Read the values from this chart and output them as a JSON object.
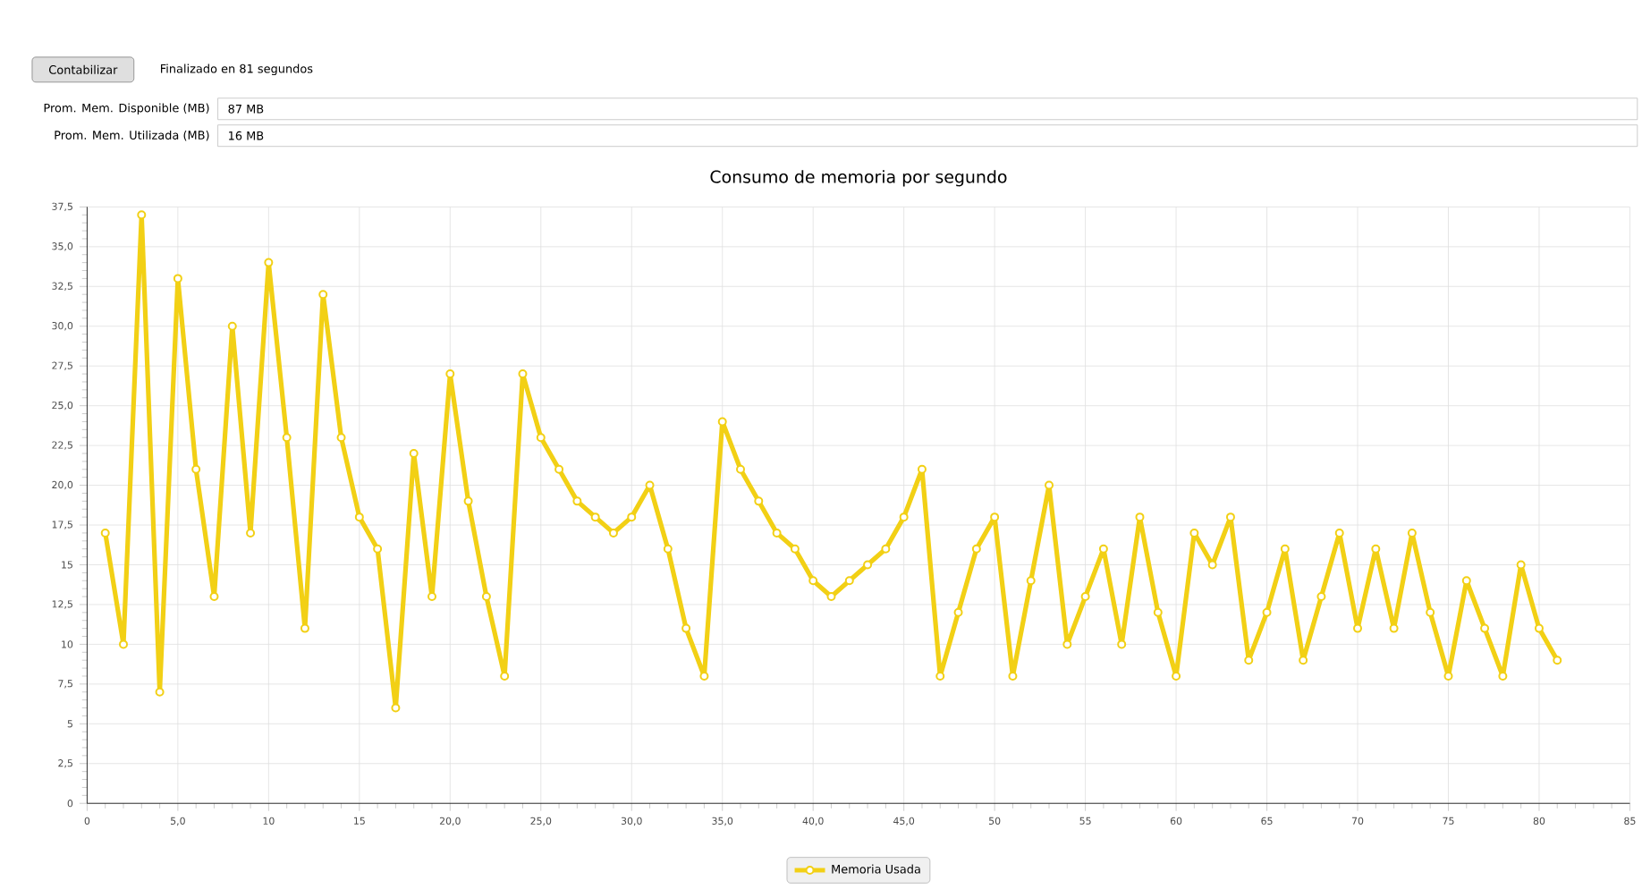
{
  "chart_data": {
    "type": "line",
    "title": "Consumo de memoria por segundo",
    "annotations": [
      "Contabilizar",
      "Finalizado en 81 segundos",
      "Prom. Mem. Disponible (MB)",
      "87 MB",
      "Prom. Mem. Utilizada (MB)",
      "16 MB"
    ],
    "x": [
      1,
      2,
      3,
      4,
      5,
      6,
      7,
      8,
      9,
      10,
      11,
      12,
      13,
      14,
      15,
      16,
      17,
      18,
      19,
      20,
      21,
      22,
      23,
      24,
      25,
      26,
      27,
      28,
      29,
      30,
      31,
      32,
      33,
      34,
      35,
      36,
      37,
      38,
      39,
      40,
      41,
      42,
      43,
      44,
      45,
      46,
      47,
      48,
      49,
      50,
      51,
      52,
      53,
      54,
      55,
      56,
      57,
      58,
      59,
      60,
      61,
      62,
      63,
      64,
      65,
      66,
      67,
      68,
      69,
      70,
      71,
      72,
      73,
      74,
      75,
      76,
      77,
      78,
      79,
      80,
      81
    ],
    "series": [
      {
        "name": "Memoria Usada",
        "color": "#f2d015",
        "values": [
          17,
          10,
          37,
          7,
          33,
          21,
          13,
          30,
          17,
          34,
          23,
          11,
          32,
          23,
          18,
          16,
          6,
          22,
          13,
          27,
          19,
          13,
          8,
          27,
          23,
          21,
          19,
          18,
          17,
          18,
          20,
          16,
          11,
          8,
          24,
          21,
          19,
          17,
          16,
          14,
          13,
          14,
          15,
          16,
          18,
          21,
          8,
          12,
          16,
          18,
          8,
          14,
          20,
          10,
          13,
          16,
          10,
          18,
          12,
          8,
          17,
          15,
          18,
          9,
          12,
          16,
          9,
          13,
          17,
          11,
          16,
          11,
          17,
          12,
          8,
          14,
          11,
          8,
          15,
          11,
          9
        ]
      }
    ],
    "xlim": [
      0,
      85
    ],
    "xticks": [
      0,
      {
        "value": 5,
        "label": "5,0"
      },
      10,
      15,
      {
        "value": 20,
        "label": "20,0"
      },
      {
        "value": 25,
        "label": "25,0"
      },
      {
        "value": 30,
        "label": "30,0"
      },
      {
        "value": 35,
        "label": "35,0"
      },
      {
        "value": 40,
        "label": "40,0"
      },
      {
        "value": 45,
        "label": "45,0"
      },
      50,
      55,
      60,
      65,
      70,
      75,
      80,
      85
    ],
    "ylim": [
      0,
      37.5
    ],
    "yticks": [
      0,
      {
        "value": 2.5,
        "label": "2,5"
      },
      5,
      {
        "value": 7.5,
        "label": "7,5"
      },
      10,
      {
        "value": 12.5,
        "label": "12,5"
      },
      15,
      {
        "value": 17.5,
        "label": "17,5"
      },
      {
        "value": 20,
        "label": "20,0"
      },
      {
        "value": 22.5,
        "label": "22,5"
      },
      {
        "value": 25,
        "label": "25,0"
      },
      {
        "value": 27.5,
        "label": "27,5"
      },
      {
        "value": 30,
        "label": "30,0"
      },
      {
        "value": 32.5,
        "label": "32,5"
      },
      {
        "value": 35,
        "label": "35,0"
      },
      {
        "value": 37.5,
        "label": "37,5"
      }
    ],
    "grid": true,
    "legend": "bottom",
    "marker": "circle",
    "line_style": "solid"
  }
}
